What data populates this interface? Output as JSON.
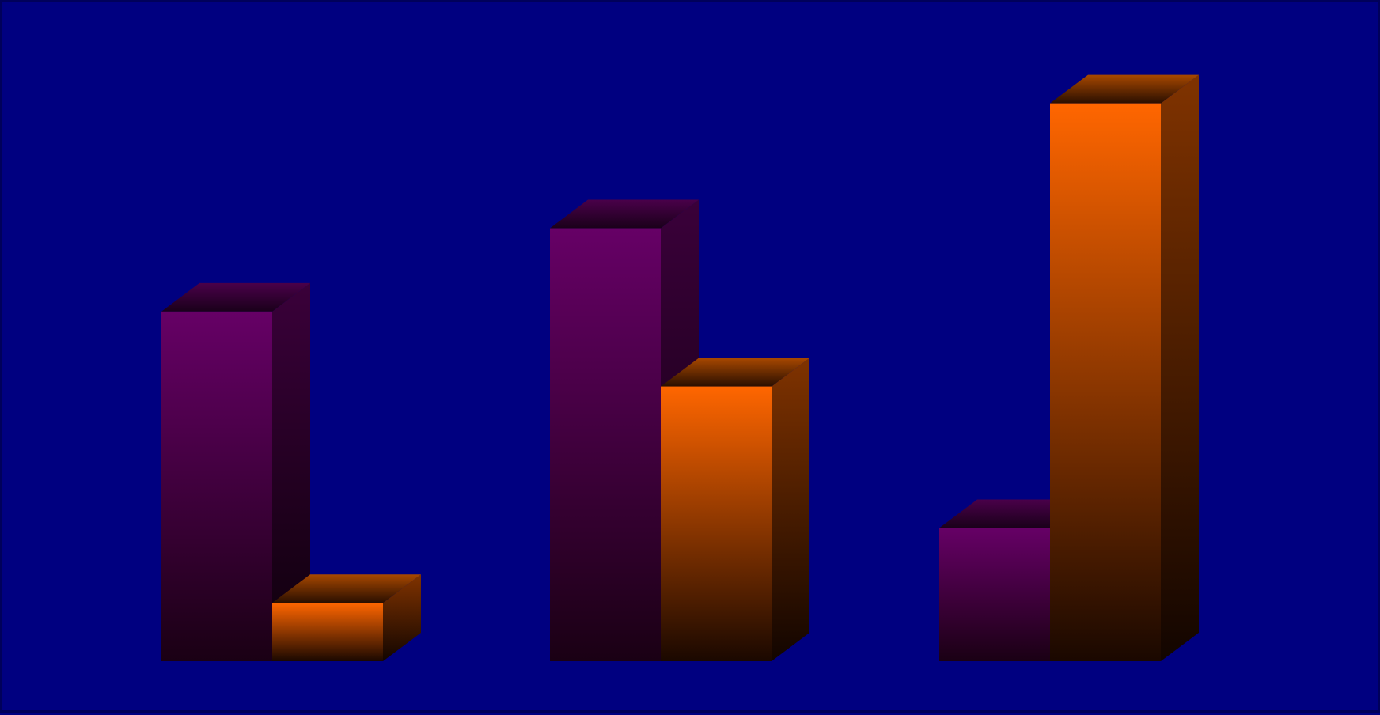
{
  "chart_data": {
    "type": "bar",
    "style": "3d-clustered-columns",
    "categories": [
      "",
      "",
      ""
    ],
    "series": [
      {
        "values": [
          42,
          52,
          16
        ]
      },
      {
        "values": [
          7,
          33,
          67
        ]
      }
    ],
    "ylim": [
      0,
      72
    ],
    "grid": false,
    "legend": "none",
    "title": "",
    "xlabel": "",
    "ylabel": "",
    "colors": {
      "background": "#000080",
      "border": "#00005a",
      "series": [
        "#660066",
        "#ff6600"
      ]
    }
  }
}
